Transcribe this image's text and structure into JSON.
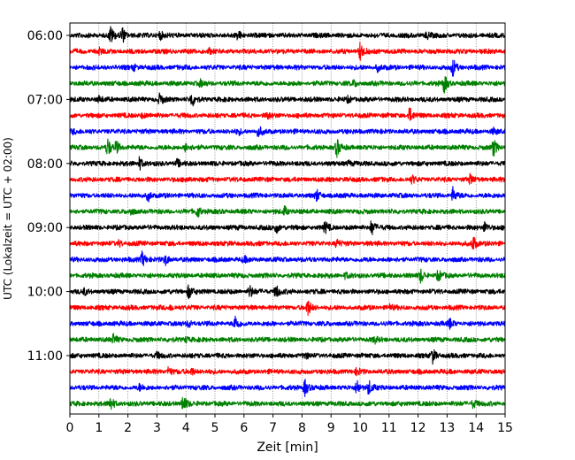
{
  "chart_data": {
    "type": "line",
    "title": "",
    "xlabel": "Zeit  [min]",
    "ylabel": "UTC (Lokalzeit = UTC + 02:00)",
    "xlim": [
      0,
      15
    ],
    "x_ticks": [
      0,
      1,
      2,
      3,
      4,
      5,
      6,
      7,
      8,
      9,
      10,
      11,
      12,
      13,
      14,
      15
    ],
    "x_tick_labels": [
      "0",
      "1",
      "2",
      "3",
      "4",
      "5",
      "6",
      "7",
      "8",
      "9",
      "10",
      "11",
      "12",
      "13",
      "14",
      "15"
    ],
    "vertical_grid": "dotted",
    "y_tick_labels": [
      "06:00",
      "07:00",
      "08:00",
      "09:00",
      "10:00",
      "11:00"
    ],
    "y_tick_rows": [
      0,
      4,
      8,
      12,
      16,
      20
    ],
    "row_start_hours": [
      6.0,
      6.25,
      6.5,
      6.75,
      7.0,
      7.25,
      7.5,
      7.75,
      8.0,
      8.25,
      8.5,
      8.75,
      9.0,
      9.25,
      9.5,
      9.75,
      10.0,
      10.25,
      10.5,
      10.75,
      11.0,
      11.25,
      11.5,
      11.75
    ],
    "colors": [
      "#000000",
      "#ff0000",
      "#0000ff",
      "#008000"
    ],
    "series": [
      {
        "events": [
          [
            1.4,
            1.0
          ],
          [
            1.8,
            0.9
          ],
          [
            3.1,
            0.5
          ],
          [
            5.8,
            0.5
          ],
          [
            12.3,
            0.4
          ]
        ]
      },
      {
        "events": [
          [
            10.0,
            1.0
          ],
          [
            4.8,
            0.3
          ],
          [
            1.0,
            0.3
          ]
        ]
      },
      {
        "events": [
          [
            13.2,
            1.0
          ],
          [
            10.6,
            0.4
          ],
          [
            2.2,
            0.3
          ]
        ]
      },
      {
        "events": [
          [
            12.9,
            1.0
          ],
          [
            4.5,
            0.3
          ],
          [
            9.8,
            0.3
          ]
        ]
      },
      {
        "events": [
          [
            3.1,
            0.6
          ],
          [
            4.2,
            0.8
          ],
          [
            1.0,
            0.3
          ],
          [
            9.6,
            0.3
          ]
        ]
      },
      {
        "events": [
          [
            11.7,
            0.9
          ],
          [
            6.8,
            0.35
          ],
          [
            2.5,
            0.25
          ]
        ]
      },
      {
        "events": [
          [
            6.5,
            0.6
          ],
          [
            5.8,
            0.3
          ],
          [
            0.1,
            0.3
          ],
          [
            14.6,
            0.3
          ]
        ]
      },
      {
        "events": [
          [
            1.3,
            1.0
          ],
          [
            1.6,
            0.7
          ],
          [
            4.0,
            0.5
          ],
          [
            9.2,
            1.0
          ],
          [
            14.6,
            0.9
          ]
        ]
      },
      {
        "events": [
          [
            2.4,
            0.7
          ],
          [
            3.7,
            0.4
          ],
          [
            9.6,
            0.3
          ]
        ]
      },
      {
        "events": [
          [
            13.8,
            0.5
          ],
          [
            11.8,
            0.4
          ],
          [
            4.0,
            0.3
          ]
        ]
      },
      {
        "events": [
          [
            2.7,
            0.6
          ],
          [
            8.5,
            0.6
          ],
          [
            13.2,
            0.8
          ]
        ]
      },
      {
        "events": [
          [
            4.4,
            0.7
          ],
          [
            7.4,
            0.5
          ],
          [
            2.1,
            0.3
          ]
        ]
      },
      {
        "events": [
          [
            7.1,
            0.7
          ],
          [
            8.8,
            0.6
          ],
          [
            10.4,
            0.9
          ],
          [
            14.3,
            0.6
          ]
        ]
      },
      {
        "events": [
          [
            13.9,
            0.9
          ],
          [
            9.2,
            0.4
          ],
          [
            1.7,
            0.3
          ]
        ]
      },
      {
        "events": [
          [
            2.5,
            0.9
          ],
          [
            3.3,
            0.5
          ],
          [
            6.0,
            0.3
          ]
        ]
      },
      {
        "events": [
          [
            12.1,
            0.8
          ],
          [
            12.7,
            0.6
          ],
          [
            9.5,
            0.3
          ]
        ]
      },
      {
        "events": [
          [
            4.1,
            0.8
          ],
          [
            6.2,
            0.7
          ],
          [
            7.1,
            0.8
          ],
          [
            0.5,
            0.3
          ]
        ]
      },
      {
        "events": [
          [
            8.2,
            0.9
          ],
          [
            3.5,
            0.3
          ],
          [
            11.0,
            0.3
          ]
        ]
      },
      {
        "events": [
          [
            5.7,
            0.8
          ],
          [
            4.1,
            0.4
          ],
          [
            13.1,
            0.5
          ]
        ]
      },
      {
        "events": [
          [
            1.5,
            0.5
          ],
          [
            4.0,
            0.3
          ],
          [
            10.5,
            0.3
          ]
        ]
      },
      {
        "events": [
          [
            12.5,
            0.8
          ],
          [
            3.0,
            0.3
          ],
          [
            8.1,
            0.3
          ]
        ]
      },
      {
        "events": [
          [
            3.4,
            0.5
          ],
          [
            4.2,
            0.4
          ],
          [
            9.9,
            0.4
          ]
        ]
      },
      {
        "events": [
          [
            8.1,
            0.9
          ],
          [
            9.9,
            0.9
          ],
          [
            10.3,
            0.8
          ],
          [
            2.4,
            0.3
          ]
        ]
      },
      {
        "events": [
          [
            1.4,
            0.8
          ],
          [
            3.9,
            1.0
          ],
          [
            13.9,
            0.5
          ]
        ]
      }
    ]
  }
}
